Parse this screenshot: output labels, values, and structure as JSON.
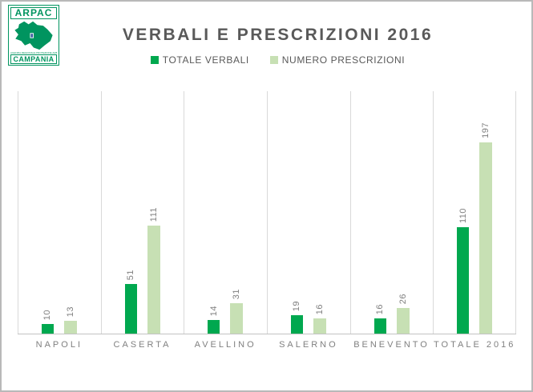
{
  "logo": {
    "acronym": "ARPAC",
    "tiny_text": "AGENZIA REGIONALE PROTEZIONE AMBIENTALE CAMPANIA",
    "region_label": "CAMPANIA",
    "color": "#00945f"
  },
  "chart_data": {
    "type": "bar",
    "title": "VERBALI E PRESCRIZIONI 2016",
    "categories": [
      "NAPOLI",
      "CASERTA",
      "AVELLINO",
      "SALERNO",
      "BENEVENTO",
      "TOTALE 2016"
    ],
    "series": [
      {
        "name": "TOTALE VERBALI",
        "color": "#00a84f",
        "values": [
          10,
          51,
          14,
          19,
          16,
          110
        ]
      },
      {
        "name": "NUMERO PRESCRIZIONI",
        "color": "#c7e0b4",
        "values": [
          13,
          111,
          31,
          16,
          26,
          197
        ]
      }
    ],
    "ylim": [
      0,
      250
    ],
    "xlabel": "",
    "ylabel": "",
    "grid": "vertical-category-separators",
    "legend_position": "top",
    "value_labels": "rotated-90-above-bars",
    "colors": {
      "title_text": "#595959",
      "legend_text": "#595959",
      "category_text": "#808080",
      "value_text": "#7f7f7f",
      "gridline": "#d9d9d9",
      "axis_line": "#c3c3c3",
      "frame_border": "#b9b9b9"
    }
  }
}
